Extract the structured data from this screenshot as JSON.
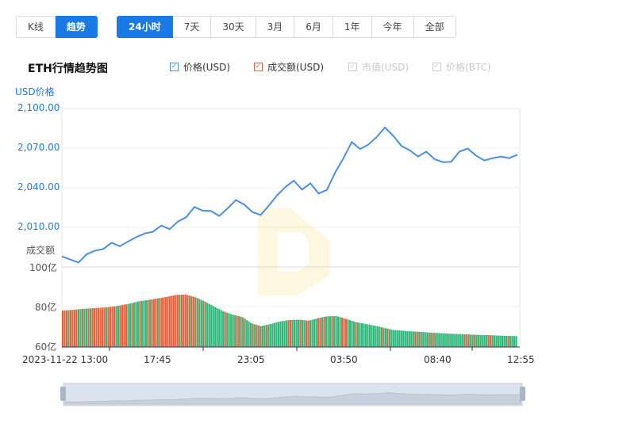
{
  "toolbar": {
    "view_tabs": [
      {
        "label": "K线",
        "active": false
      },
      {
        "label": "趋势",
        "active": true
      }
    ],
    "range_tabs": [
      {
        "label": "24小时",
        "active": true
      },
      {
        "label": "7天",
        "active": false
      },
      {
        "label": "30天",
        "active": false
      },
      {
        "label": "3月",
        "active": false
      },
      {
        "label": "6月",
        "active": false
      },
      {
        "label": "1年",
        "active": false
      },
      {
        "label": "今年",
        "active": false
      },
      {
        "label": "全部",
        "active": false
      }
    ]
  },
  "title": "ETH行情趋势图",
  "legend": [
    {
      "label": "价格(USD)",
      "checked": true,
      "color": "#4a90e2",
      "enabled": true
    },
    {
      "label": "成交额(USD)",
      "checked": true,
      "color": "#e8603c",
      "enabled": true
    },
    {
      "label": "市值(USD)",
      "checked": true,
      "color": "#cccccc",
      "enabled": false
    },
    {
      "label": "价格(BTC)",
      "checked": true,
      "color": "#cccccc",
      "enabled": false
    }
  ],
  "chart_data": {
    "type": "line",
    "price_axis_label": "USD价格",
    "volume_axis_label": "成交额",
    "price_ticks": [
      "2,100.00",
      "2,070.00",
      "2,040.00",
      "2,010.00"
    ],
    "volume_ticks": [
      "100亿",
      "80亿",
      "60亿"
    ],
    "x_ticks": [
      "2023-11-22 13:00",
      "17:45",
      "23:05",
      "03:50",
      "08:40",
      "12:55"
    ],
    "price_ylim": [
      1980,
      2100
    ],
    "volume_ylim": [
      60,
      100
    ],
    "price_series": {
      "name": "价格(USD)",
      "values": [
        1988,
        1986,
        1983,
        1990,
        1992,
        1994,
        1998,
        1996,
        1999,
        2003,
        2005,
        2007,
        2011,
        2009,
        2014,
        2018,
        2025,
        2023,
        2022,
        2019,
        2024,
        2031,
        2027,
        2022,
        2019,
        2027,
        2034,
        2041,
        2045,
        2039,
        2043,
        2036,
        2038,
        2052,
        2062,
        2075,
        2069,
        2073,
        2078,
        2086,
        2079,
        2072,
        2068,
        2064,
        2067,
        2062,
        2059,
        2060,
        2067,
        2070,
        2064,
        2061,
        2062,
        2064,
        2062,
        2065
      ]
    },
    "volume_series": {
      "name": "成交额(USD)",
      "values": [
        78.0,
        78.3,
        78.8,
        79.1,
        79.4,
        79.8,
        80.5,
        81.4,
        82.6,
        83.3,
        84.1,
        84.9,
        85.9,
        86.1,
        84.8,
        82.7,
        80.1,
        77.6,
        75.9,
        74.8,
        71.5,
        70.1,
        71.2,
        72.5,
        73.2,
        73.4,
        72.9,
        74.1,
        75.1,
        75.2,
        73.8,
        72.2,
        71.3,
        70.4,
        69.3,
        68.2,
        67.8,
        67.5,
        67.2,
        66.8,
        66.6,
        66.3,
        66.1,
        65.9,
        65.7,
        65.6,
        65.4,
        65.2,
        65.1
      ]
    },
    "grid": true
  }
}
